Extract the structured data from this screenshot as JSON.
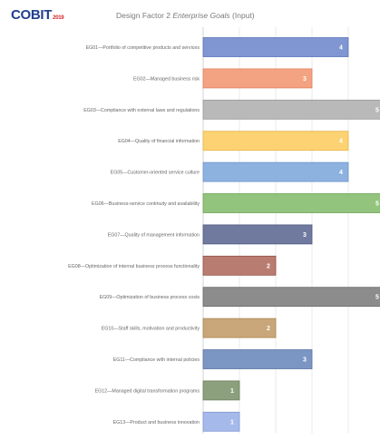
{
  "header": {
    "logo_text": "COBIT",
    "logo_year": "2019",
    "title_prefix": "Design Factor 2 ",
    "title_emphasis": "Enterprise Goals",
    "title_suffix": " (Input)"
  },
  "chart_data": {
    "type": "bar",
    "orientation": "horizontal",
    "title": "Design Factor 2 Enterprise Goals (Input)",
    "xlabel": "",
    "ylabel": "",
    "xlim": [
      0,
      5
    ],
    "grid": true,
    "legend": "none",
    "categories": [
      "EG01—Portfolio of competitive products and services",
      "EG02—Managed business risk",
      "EG03—Compliance with external laws and regulations",
      "EG04—Quality of financial information",
      "EG05—Customer-oriented service culture",
      "EG06—Business-service continuity and availability",
      "EG07—Quality of management information",
      "EG08—Optimization of internal business process functionality",
      "EG09—Optimization of business process costs",
      "EG10—Staff skills, motivation and productivity",
      "EG11—Compliance with internal policies",
      "EG12—Managed digital transformation programs",
      "EG13—Product and business innovation"
    ],
    "values": [
      4,
      3,
      5,
      4,
      4,
      5,
      3,
      2,
      5,
      2,
      3,
      1,
      1
    ],
    "colors": [
      "#7f96d2",
      "#f4a382",
      "#b9b9b9",
      "#fdd272",
      "#8eb2e0",
      "#93c47d",
      "#6f7a9e",
      "#b97c70",
      "#8c8c8c",
      "#c9a67a",
      "#7c96c4",
      "#8da07e",
      "#a5baea"
    ],
    "borders": [
      "#5a73b8",
      "#e07f5f",
      "#9a9a9a",
      "#e6b44a",
      "#6a93c9",
      "#6ea456",
      "#4e5a80",
      "#934f44",
      "#6a6a6a",
      "#a9844f",
      "#5a74a6",
      "#6b7f5d",
      "#7f98d2"
    ]
  }
}
